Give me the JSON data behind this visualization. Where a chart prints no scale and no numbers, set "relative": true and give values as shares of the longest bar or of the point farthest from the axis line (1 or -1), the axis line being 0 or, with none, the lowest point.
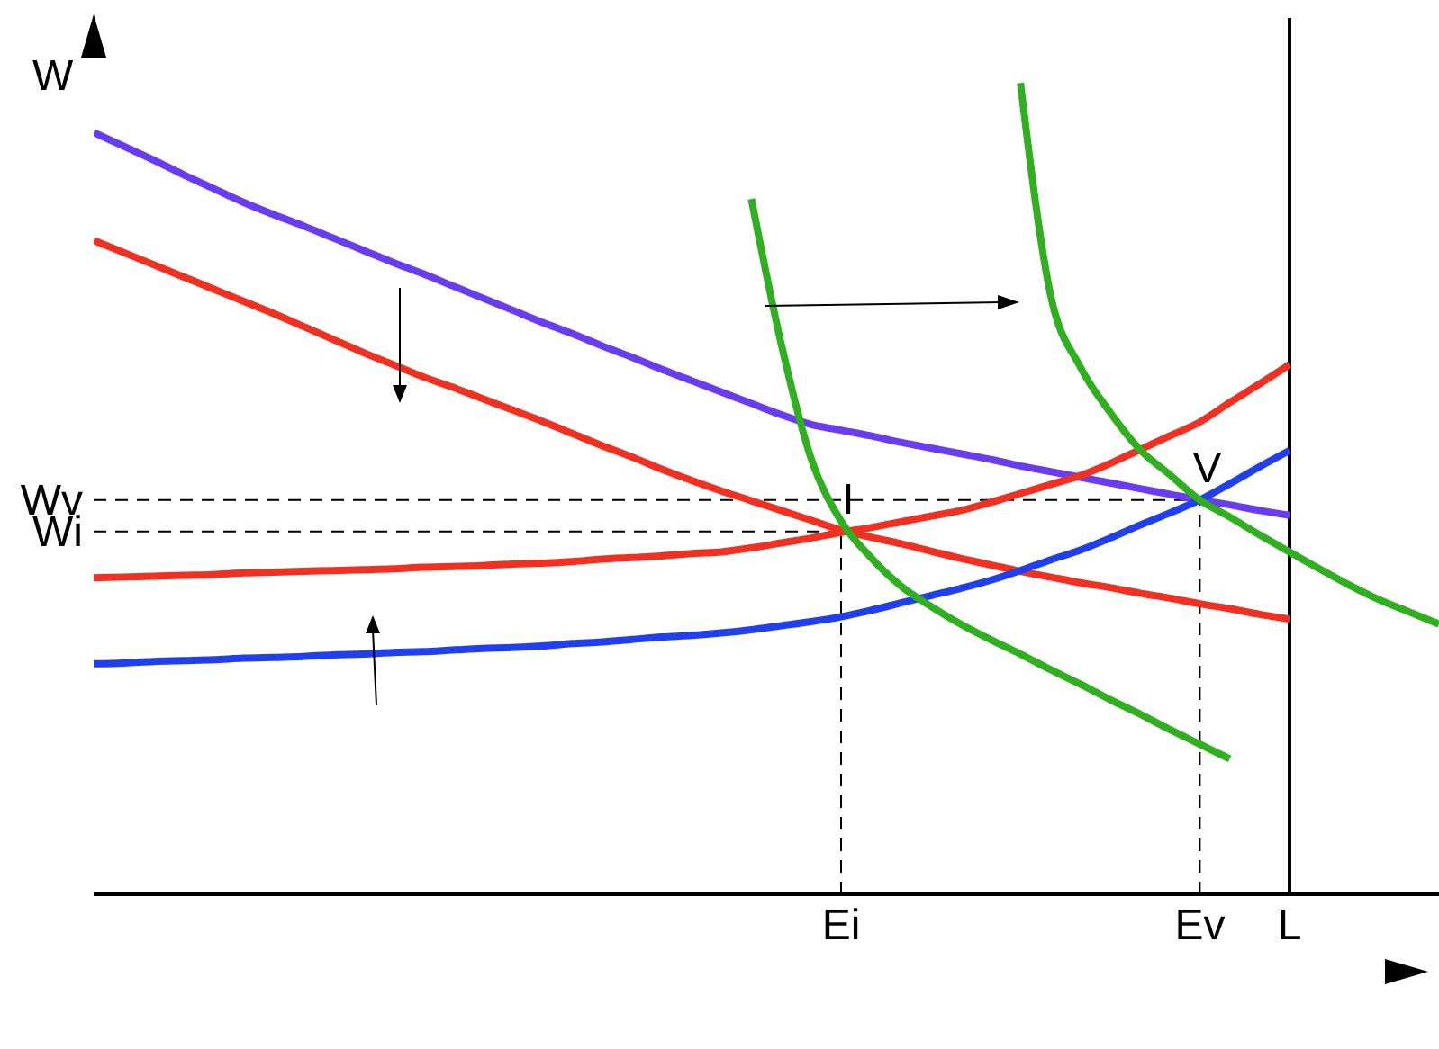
{
  "chart_data": {
    "type": "line",
    "relative": true,
    "ylabel": "W",
    "categories": [
      null,
      null,
      null,
      null,
      null,
      null,
      null,
      null,
      null,
      null,
      null,
      null,
      null,
      null,
      null,
      null,
      null,
      null,
      null,
      null,
      null,
      null,
      null,
      null,
      null,
      "Ei",
      null,
      null,
      null,
      null,
      null,
      null,
      null,
      null,
      null,
      null,
      null,
      "Ev",
      null,
      null,
      "L",
      null,
      null,
      null,
      null,
      null
    ],
    "series": [
      {
        "color": "#6a3cf0",
        "values": [
          0.939,
          0.922,
          0.905,
          0.887,
          0.87,
          0.853,
          0.838,
          0.824,
          0.809,
          0.794,
          0.779,
          0.765,
          0.75,
          0.735,
          0.72,
          0.705,
          0.691,
          0.676,
          0.662,
          0.647,
          0.633,
          0.619,
          0.605,
          0.591,
          0.579,
          0.572,
          0.565,
          0.557,
          0.55,
          0.543,
          0.536,
          0.528,
          0.521,
          0.514,
          0.507,
          0.5,
          0.493,
          0.486,
          0.48,
          0.473,
          0.467,
          null,
          null,
          null,
          null,
          null
        ]
      },
      {
        "color": "#f03020",
        "values": [
          0.806,
          0.791,
          0.776,
          0.761,
          0.746,
          0.731,
          0.716,
          0.7,
          0.684,
          0.668,
          0.653,
          0.638,
          0.625,
          0.611,
          0.597,
          0.583,
          0.568,
          0.553,
          0.539,
          0.524,
          0.51,
          0.497,
          0.485,
          0.473,
          0.461,
          0.449,
          0.44,
          0.432,
          0.423,
          0.414,
          0.406,
          0.398,
          0.391,
          0.384,
          0.378,
          0.371,
          0.365,
          0.358,
          0.352,
          0.345,
          0.339,
          null,
          null,
          null,
          null,
          null
        ]
      },
      {
        "color": "#f03020",
        "values": [
          0.39,
          0.391,
          0.392,
          0.393,
          0.394,
          0.396,
          0.397,
          0.398,
          0.399,
          0.4,
          0.401,
          0.403,
          0.404,
          0.405,
          0.407,
          0.408,
          0.41,
          0.413,
          0.415,
          0.417,
          0.42,
          0.422,
          0.427,
          0.433,
          0.439,
          0.446,
          0.452,
          0.459,
          0.466,
          0.473,
          0.483,
          0.494,
          0.505,
          0.516,
          0.531,
          0.548,
          0.565,
          0.582,
          0.606,
          0.629,
          0.653,
          null,
          null,
          null,
          null,
          null
        ]
      },
      {
        "color": "#2040f0",
        "values": [
          0.284,
          0.285,
          0.287,
          0.288,
          0.289,
          0.291,
          0.292,
          0.293,
          0.295,
          0.296,
          0.298,
          0.299,
          0.301,
          0.303,
          0.304,
          0.306,
          0.309,
          0.311,
          0.314,
          0.317,
          0.319,
          0.322,
          0.326,
          0.331,
          0.336,
          0.342,
          0.35,
          0.359,
          0.368,
          0.377,
          0.387,
          0.399,
          0.412,
          0.424,
          0.439,
          0.455,
          0.47,
          0.486,
          0.506,
          0.527,
          0.547,
          null,
          null,
          null,
          null,
          null
        ]
      },
      {
        "color": "#30b020",
        "values": [
          null,
          null,
          null,
          null,
          null,
          null,
          null,
          null,
          null,
          null,
          null,
          null,
          null,
          null,
          null,
          null,
          null,
          null,
          null,
          null,
          null,
          null,
          0.857,
          0.678,
          0.537,
          0.46,
          0.415,
          0.38,
          0.355,
          0.333,
          0.314,
          0.296,
          0.277,
          0.259,
          0.24,
          0.222,
          0.203,
          0.185,
          0.167,
          null,
          null,
          null,
          null,
          null,
          null,
          null
        ]
      },
      {
        "color": "#30b020",
        "values": [
          null,
          null,
          null,
          null,
          null,
          null,
          null,
          null,
          null,
          null,
          null,
          null,
          null,
          null,
          null,
          null,
          null,
          null,
          null,
          null,
          null,
          null,
          null,
          null,
          null,
          null,
          null,
          null,
          null,
          null,
          null,
          1,
          0.74,
          0.65,
          0.594,
          0.548,
          0.517,
          0.486,
          0.465,
          0.443,
          0.422,
          0.401,
          0.381,
          0.363,
          0.348,
          0.333
        ]
      }
    ],
    "ref_lines": [
      {
        "axis": "y",
        "value": 0.486,
        "label": "Wv",
        "line_style": "dashed",
        "color": "#000000"
      },
      {
        "axis": "y",
        "value": 0.447,
        "label": "Wi",
        "line_style": "dashed",
        "color": "#000000"
      },
      {
        "axis": "x",
        "value": "Ev",
        "line_style": "dashed",
        "color": "#000000"
      },
      {
        "axis": "x",
        "value": "Ei",
        "line_style": "dashed",
        "color": "#000000"
      },
      {
        "axis": "x",
        "value": "L",
        "line_style": "solid",
        "color": "#000000"
      }
    ],
    "annotations": [
      {
        "text": "I",
        "x": "Ei",
        "y": 0.447
      },
      {
        "text": "V",
        "x": "Ev",
        "y": 0.486
      }
    ],
    "legend": false,
    "grid": false,
    "marker": "none",
    "line_style": "solid"
  }
}
